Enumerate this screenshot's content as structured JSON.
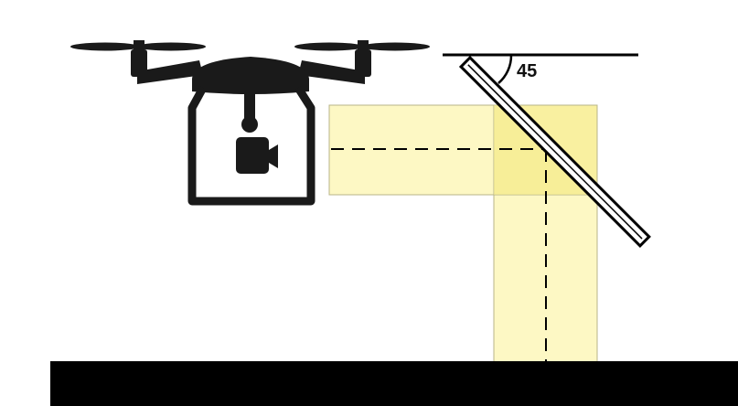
{
  "diagram": {
    "angle_label": "45",
    "colors": {
      "beam_fill": "#fdf8c4",
      "beam_overlap_fill": "#f9f0a0",
      "beam_edge": "#b8b58a",
      "ink": "#000000",
      "mirror_face": "#ffffff"
    },
    "icons": [
      "drone-icon",
      "camera-icon"
    ]
  }
}
